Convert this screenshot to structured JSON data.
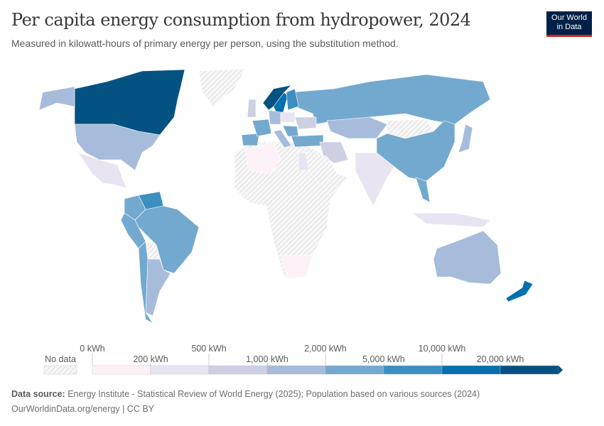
{
  "header": {
    "title": "Per capita energy consumption from hydropower, 2024",
    "subtitle": "Measured in kilowatt-hours of primary energy per person, using the substitution method.",
    "logo_line1": "Our World",
    "logo_line2": "in Data"
  },
  "chart_data": {
    "type": "choropleth-map",
    "title": "Per capita energy consumption from hydropower, 2024",
    "unit": "kWh",
    "legend": {
      "no_data_label": "No data",
      "no_data_color": "#e0e0e0",
      "bins": [
        "0 kWh",
        "200 kWh",
        "500 kWh",
        "1,000 kWh",
        "2,000 kWh",
        "5,000 kWh",
        "10,000 kWh",
        "20,000 kWh"
      ],
      "colors": [
        "#fdf2f8",
        "#e9e4f1",
        "#cfcfe4",
        "#a7bcdb",
        "#74a9cf",
        "#3b8fc1",
        "#0570b0",
        "#045281"
      ]
    },
    "countries": {
      "Canada": 7,
      "Alaska": 3,
      "USA": 3,
      "Mexico": 1,
      "Greenland": null,
      "Venezuela": 5,
      "Colombia": 4,
      "Brazil": 4,
      "Peru": 4,
      "Bolivia": null,
      "Argentina": 3,
      "Chile": 4,
      "Africa": null,
      "Algeria": 0,
      "Egypt": 1,
      "South Africa": 0,
      "Spain": 4,
      "France": 4,
      "UK": 2,
      "Norway": 7,
      "Sweden": 6,
      "Finland": 5,
      "Germany": 3,
      "Italy": 3,
      "Poland": 1,
      "Ukraine": 2,
      "Turkey": 4,
      "Balkans": 4,
      "Russia": 4,
      "Kazakhstan": 3,
      "Mongolia": null,
      "China": 4,
      "India": 1,
      "Iran": 2,
      "Saudi Arabia": null,
      "Vietnam": 4,
      "Indonesia": 1,
      "Japan": 3,
      "Australia": 3,
      "New Zealand": 6
    }
  },
  "footer": {
    "source_label": "Data source:",
    "source_text": "Energy Institute - Statistical Review of World Energy (2025); Population based on various sources (2024)",
    "url_license": "OurWorldinData.org/energy | CC BY"
  }
}
